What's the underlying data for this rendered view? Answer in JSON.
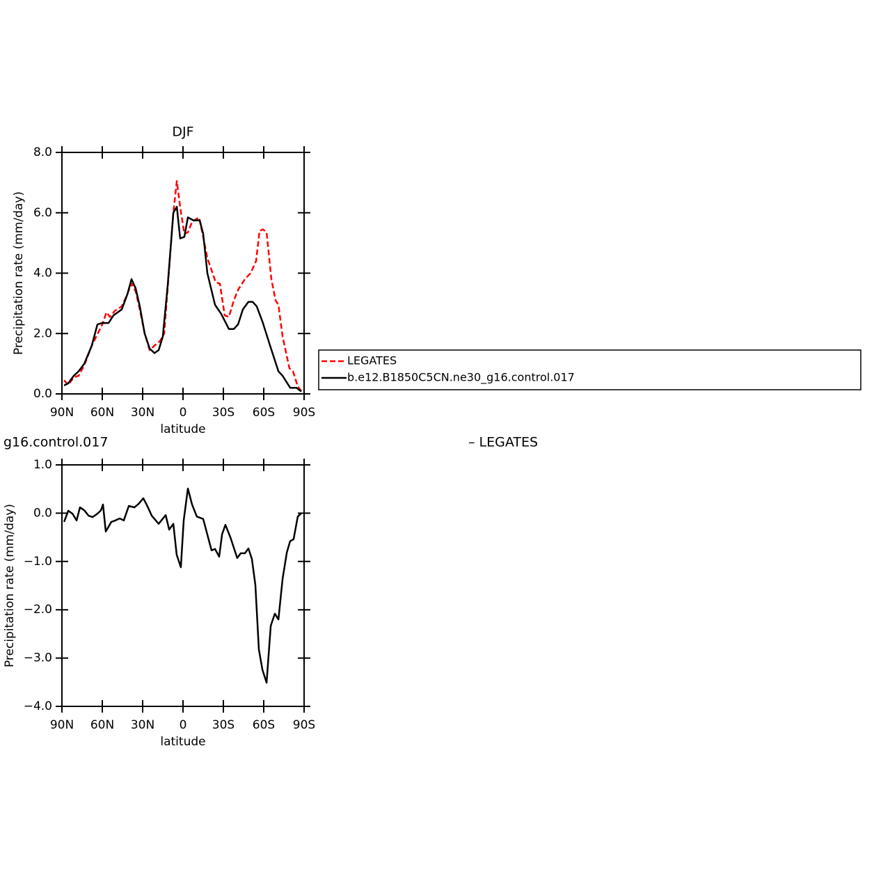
{
  "chart_data": [
    {
      "type": "line",
      "title": "DJF",
      "xlabel": "latitude",
      "ylabel": "Precipitation rate (mm/day)",
      "xlim": [
        90,
        -90
      ],
      "xticks": [
        {
          "value": 90,
          "label": "90N"
        },
        {
          "value": 60,
          "label": "60N"
        },
        {
          "value": 30,
          "label": "30N"
        },
        0,
        {
          "value": -30,
          "label": "30S"
        },
        {
          "value": -60,
          "label": "60S"
        },
        {
          "value": -90,
          "label": "90S"
        }
      ],
      "ylim": [
        0,
        8
      ],
      "yticks": [
        {
          "value": 0,
          "label": "0.0"
        },
        {
          "value": 2,
          "label": "2.0"
        },
        {
          "value": 4,
          "label": "4.0"
        },
        {
          "value": 6,
          "label": "6.0"
        },
        {
          "value": 8,
          "label": "8.0"
        }
      ],
      "legend": "right",
      "series": [
        {
          "name": "LEGATES",
          "color": "#ff0000",
          "dashed": true,
          "x": [
            88.4,
            85.3,
            81.2,
            77.6,
            73.4,
            67.8,
            60,
            56.9,
            54.3,
            50.7,
            45.5,
            42.4,
            38.3,
            35.2,
            32.1,
            28.5,
            24.8,
            21.2,
            17.1,
            14,
            11.4,
            7.2,
            4.6,
            2.1,
            -1,
            -3.6,
            -6.7,
            -11.9,
            -15,
            -18.1,
            -21.2,
            -24.3,
            -27.4,
            -31,
            -34.1,
            -37.8,
            -40.9,
            -46,
            -50.2,
            -54.3,
            -56.9,
            -59.5,
            -62.1,
            -65.7,
            -68.8,
            -70.9,
            -74,
            -79.1,
            -81.7,
            -85.3,
            -87.9
          ],
          "values": [
            0.45,
            0.3,
            0.55,
            0.6,
            0.95,
            1.6,
            2.3,
            2.7,
            2.55,
            2.75,
            2.9,
            3.2,
            3.65,
            3.4,
            2.8,
            2.0,
            1.45,
            1.6,
            1.75,
            2.0,
            3.5,
            6.0,
            7.05,
            6.2,
            5.3,
            5.35,
            5.7,
            5.85,
            5.2,
            4.5,
            4.1,
            3.7,
            3.65,
            2.6,
            2.55,
            3.1,
            3.45,
            3.8,
            4.0,
            4.4,
            5.4,
            5.45,
            5.35,
            3.8,
            3.1,
            2.95,
            1.9,
            0.85,
            0.75,
            0.25,
            0.1
          ]
        },
        {
          "name": "b.e12.B1850C5CN.ne30_g16.control.017",
          "color": "#000000",
          "dashed": false,
          "x": [
            88.4,
            85.3,
            81.2,
            77.6,
            73.4,
            67.8,
            63.6,
            60,
            55.3,
            51.7,
            45.5,
            41.4,
            38.3,
            35.2,
            32.1,
            28.5,
            24.8,
            21.2,
            18.1,
            15,
            11.4,
            7.2,
            4.6,
            2.1,
            -1,
            -3.6,
            -7.7,
            -12.4,
            -15,
            -18.1,
            -23.8,
            -28.4,
            -34.1,
            -37.8,
            -40.9,
            -44.5,
            -48.6,
            -51.7,
            -54.8,
            -59,
            -64.7,
            -70.9,
            -74,
            -79.7,
            -84.3,
            -87.9
          ],
          "values": [
            0.28,
            0.35,
            0.6,
            0.75,
            1.0,
            1.6,
            2.3,
            2.35,
            2.35,
            2.6,
            2.8,
            3.3,
            3.8,
            3.5,
            2.9,
            2.0,
            1.5,
            1.35,
            1.45,
            1.9,
            3.6,
            6.0,
            6.2,
            5.15,
            5.2,
            5.85,
            5.75,
            5.75,
            5.3,
            4.0,
            2.95,
            2.65,
            2.15,
            2.15,
            2.3,
            2.8,
            3.05,
            3.05,
            2.9,
            2.4,
            1.6,
            0.75,
            0.6,
            0.2,
            0.2,
            0.08
          ]
        }
      ]
    },
    {
      "type": "line",
      "title_left": "g16.control.017",
      "title_right": "– LEGATES",
      "xlabel": "latitude",
      "ylabel": "Precipitation rate (mm/day)",
      "xlim": [
        90,
        -90
      ],
      "xticks": [
        {
          "value": 90,
          "label": "90N"
        },
        {
          "value": 60,
          "label": "60N"
        },
        {
          "value": 30,
          "label": "30N"
        },
        0,
        {
          "value": -30,
          "label": "30S"
        },
        {
          "value": -60,
          "label": "60S"
        },
        {
          "value": -90,
          "label": "90S"
        }
      ],
      "ylim": [
        -4,
        1
      ],
      "yticks": [
        {
          "value": 1,
          "label": "1.0"
        },
        {
          "value": 0,
          "label": "0.0"
        },
        {
          "value": -1,
          "label": "−1.0"
        },
        {
          "value": -2,
          "label": "−2.0"
        },
        {
          "value": -3,
          "label": "−3.0"
        },
        {
          "value": -4,
          "label": "−4.0"
        }
      ],
      "series": [
        {
          "color": "#000000",
          "dashed": false,
          "x": [
            88.4,
            85.3,
            82.2,
            79.1,
            76.6,
            73.4,
            70.3,
            67.2,
            63.6,
            61.0,
            59.5,
            57.4,
            53.3,
            50.2,
            47.1,
            44.0,
            40.3,
            36.2,
            33.1,
            29.5,
            26.4,
            23.3,
            18.1,
            12.9,
            10.3,
            7.2,
            4.7,
            1.6,
            -0.5,
            -3.6,
            -6.7,
            -10.3,
            -15.0,
            -21.2,
            -23.8,
            -26.9,
            -29.0,
            -31.5,
            -35.2,
            -40.3,
            -42.9,
            -46.0,
            -48.6,
            -51.2,
            -53.8,
            -56.4,
            -59.0,
            -62.1,
            -65.2,
            -68.3,
            -70.9,
            -74.0,
            -77.1,
            -79.6,
            -82.2,
            -85.3,
            -87.9
          ],
          "values": [
            -0.18,
            0.05,
            -0.01,
            -0.15,
            0.12,
            0.06,
            -0.05,
            -0.08,
            -0.01,
            0.06,
            0.18,
            -0.38,
            -0.18,
            -0.15,
            -0.11,
            -0.15,
            0.15,
            0.12,
            0.19,
            0.31,
            0.14,
            -0.05,
            -0.22,
            -0.04,
            -0.34,
            -0.22,
            -0.86,
            -1.12,
            -0.15,
            0.51,
            0.18,
            -0.07,
            -0.12,
            -0.77,
            -0.74,
            -0.9,
            -0.44,
            -0.24,
            -0.5,
            -0.93,
            -0.83,
            -0.83,
            -0.73,
            -0.95,
            -1.49,
            -2.82,
            -3.24,
            -3.51,
            -2.33,
            -2.08,
            -2.2,
            -1.36,
            -0.82,
            -0.58,
            -0.54,
            -0.07,
            0.0
          ]
        }
      ]
    }
  ]
}
